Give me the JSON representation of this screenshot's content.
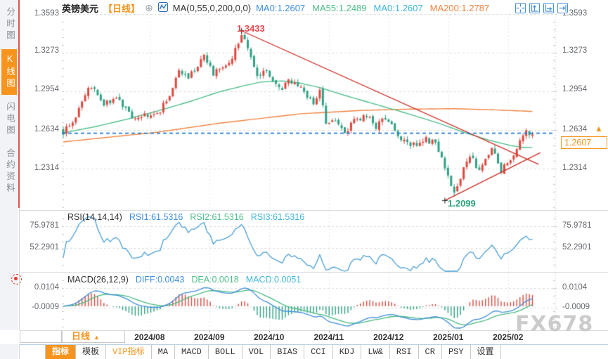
{
  "window": {
    "watermark": "FX678"
  },
  "sidebar": {
    "items": [
      {
        "label": "分时图",
        "active": false
      },
      {
        "label": "K线图",
        "active": true
      },
      {
        "label": "闪电图",
        "active": false
      },
      {
        "label": "合约资料",
        "active": false
      }
    ]
  },
  "header": {
    "symbol": "英镑美元",
    "timeframe_tag": "【日线】",
    "ma_settings": "MA(0,55,0,200,0,0)",
    "ma_values": [
      {
        "text": "MA0:1.2607",
        "color": "#3e8ede"
      },
      {
        "text": "MA55:1.2489",
        "color": "#4fbf8b"
      },
      {
        "text": "MA0:1.2607",
        "color": "#3fb5d9"
      },
      {
        "text": "MA200:1.2787",
        "color": "#f08441"
      }
    ]
  },
  "price_axis": {
    "ticks": [
      "1.3593",
      "1.3273",
      "1.2954",
      "1.2634",
      "1.2314"
    ],
    "last_price": "1.2607"
  },
  "markers": {
    "high": "1.3433",
    "low": "1.2099"
  },
  "rsi_panel": {
    "title": "RSI(14,14,14)",
    "values": [
      {
        "text": "RSI1:61.5316",
        "color": "#3e8ede"
      },
      {
        "text": "RSI2:61.5316",
        "color": "#4fbf8b"
      },
      {
        "text": "RSI3:61.5316",
        "color": "#3fb5d9"
      }
    ],
    "ticks": [
      "75.9781",
      "52.2901"
    ]
  },
  "macd_panel": {
    "title": "MACD(26,12,9)",
    "values": [
      {
        "text": "DIFF:0.0043",
        "color": "#3e8ede"
      },
      {
        "text": "DEA:0.0018",
        "color": "#4fbf8b"
      },
      {
        "text": "MACD:0.0051",
        "color": "#3fb5d9"
      }
    ],
    "ticks": [
      "0.0104",
      "-0.0009"
    ]
  },
  "x_axis": {
    "timeframe_label": "日线",
    "dates": [
      "2024/08",
      "2024/09",
      "2024/10",
      "2024/11",
      "2024/12",
      "2025/01",
      "2025/02"
    ]
  },
  "toolbar": {
    "tabs": [
      {
        "label": "指标",
        "active": true
      },
      {
        "label": "模板"
      },
      {
        "label": "VIP指标",
        "vip": true
      },
      {
        "label": "MA"
      },
      {
        "label": "MACD"
      },
      {
        "label": "BOLL"
      },
      {
        "label": "VOL"
      },
      {
        "label": "BIAS"
      },
      {
        "label": "CCI"
      },
      {
        "label": "KDJ"
      },
      {
        "label": "LW&"
      },
      {
        "label": "RSI"
      },
      {
        "label": "CR"
      },
      {
        "label": "PSY"
      },
      {
        "label": "设置"
      }
    ]
  },
  "colors": {
    "up": "#e0463e",
    "down": "#2ea183",
    "ma55": "#4fbf8b",
    "ma200": "#f08441",
    "trendline": "#cc2b24",
    "last_price_line": "#1f7ad4",
    "accent_orange": "#f7941d",
    "rsi_line": "#4a9fd4",
    "diff_line": "#3e8ede",
    "dea_line": "#45b97c",
    "hist_pos": "#d8493f",
    "hist_neg": "#2ea183",
    "grid": "#dbdbdb",
    "axis_text": "#65696f",
    "watermark": "#cbcbcb"
  },
  "chart_data": {
    "type": "candlestick",
    "symbol": "英镑美元 (GBP/USD)",
    "interval": "daily",
    "price_axis_values": [
      1.3593,
      1.3273,
      1.2954,
      1.2634,
      1.2314
    ],
    "high_label": 1.3433,
    "low_label": 1.2099,
    "last": 1.2607,
    "month_day_index": [
      27.6,
      46.7,
      65.8,
      84.9,
      104.0,
      123.1,
      142.2
    ],
    "price_waypoints": [
      [
        0,
        1.262
      ],
      [
        3,
        1.27
      ],
      [
        8,
        1.3
      ],
      [
        10,
        1.296
      ],
      [
        13,
        1.283
      ],
      [
        16,
        1.29
      ],
      [
        19,
        1.284
      ],
      [
        23,
        1.2705
      ],
      [
        26,
        1.276
      ],
      [
        28,
        1.274
      ],
      [
        31,
        1.28
      ],
      [
        34,
        1.292
      ],
      [
        37,
        1.312
      ],
      [
        40,
        1.306
      ],
      [
        45,
        1.326
      ],
      [
        48,
        1.309
      ],
      [
        51,
        1.316
      ],
      [
        54,
        1.323
      ],
      [
        57,
        1.342
      ],
      [
        59,
        1.333
      ],
      [
        62,
        1.306
      ],
      [
        65,
        1.313
      ],
      [
        68,
        1.3
      ],
      [
        70,
        1.297
      ],
      [
        72,
        1.304
      ],
      [
        76,
        1.299
      ],
      [
        80,
        1.283
      ],
      [
        82,
        1.296
      ],
      [
        84,
        1.27
      ],
      [
        87,
        1.273
      ],
      [
        90,
        1.261
      ],
      [
        93,
        1.27
      ],
      [
        97,
        1.276
      ],
      [
        100,
        1.266
      ],
      [
        103,
        1.274
      ],
      [
        106,
        1.262
      ],
      [
        111,
        1.249
      ],
      [
        115,
        1.256
      ],
      [
        119,
        1.252
      ],
      [
        122,
        1.233
      ],
      [
        125,
        1.211
      ],
      [
        128,
        1.232
      ],
      [
        130,
        1.243
      ],
      [
        133,
        1.228
      ],
      [
        137,
        1.248
      ],
      [
        140,
        1.23
      ],
      [
        144,
        1.244
      ],
      [
        148,
        1.261
      ],
      [
        150,
        1.26
      ]
    ],
    "ma55_waypoints": [
      [
        0,
        1.261
      ],
      [
        10,
        1.266
      ],
      [
        20,
        1.272
      ],
      [
        30,
        1.279
      ],
      [
        40,
        1.2865
      ],
      [
        50,
        1.295
      ],
      [
        57,
        1.2995
      ],
      [
        63,
        1.303
      ],
      [
        70,
        1.304
      ],
      [
        76,
        1.302
      ],
      [
        82,
        1.2985
      ],
      [
        90,
        1.292
      ],
      [
        100,
        1.2845
      ],
      [
        110,
        1.277
      ],
      [
        120,
        1.269
      ],
      [
        128,
        1.2615
      ],
      [
        136,
        1.255
      ],
      [
        143,
        1.2505
      ],
      [
        147,
        1.249
      ],
      [
        150,
        1.2489
      ]
    ],
    "ma200_waypoints": [
      [
        0,
        1.2535
      ],
      [
        15,
        1.2575
      ],
      [
        30,
        1.2615
      ],
      [
        50,
        1.269
      ],
      [
        76,
        1.2768
      ],
      [
        95,
        1.2795
      ],
      [
        110,
        1.2806
      ],
      [
        125,
        1.281
      ],
      [
        138,
        1.28
      ],
      [
        150,
        1.2787
      ]
    ],
    "trendlines": [
      {
        "points": [
          [
            57,
            1.3455
          ],
          [
            152,
            1.235
          ]
        ]
      },
      {
        "points": [
          [
            122,
            1.205
          ],
          [
            152.5,
            1.2445
          ]
        ]
      }
    ],
    "rsi": {
      "period": 14,
      "last": 61.5316,
      "axis": [
        75.9781,
        52.2901
      ]
    },
    "macd": {
      "fast": 12,
      "slow": 26,
      "signal": 9,
      "diff": 0.0043,
      "dea": 0.0018,
      "macd": 0.0051,
      "axis": [
        0.0104,
        -0.0009
      ]
    }
  }
}
